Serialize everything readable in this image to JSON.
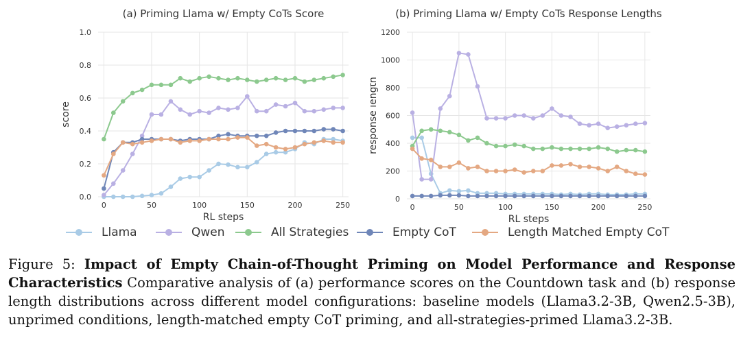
{
  "colors": {
    "Llama": "#a9cbe6",
    "Qwen": "#b9b0e3",
    "All Strategies": "#8cc98e",
    "Empty CoT": "#6f86b8",
    "Length Matched Empty CoT": "#e4a882",
    "grid": "#e6e6e6"
  },
  "legend": [
    "Llama",
    "Qwen",
    "All Strategies",
    "Empty CoT",
    "Length Matched Empty CoT"
  ],
  "chart_data": [
    {
      "type": "line",
      "title": "(a) Priming Llama w/ Empty CoTs Score",
      "xlabel": "RL steps",
      "ylabel": "score",
      "xlim": [
        -6,
        256
      ],
      "ylim": [
        0,
        1.0
      ],
      "xticks": [
        0,
        50,
        100,
        150,
        200,
        250
      ],
      "yticks": [
        0.0,
        0.2,
        0.4,
        0.6,
        0.8,
        1.0
      ],
      "ytick_labels": [
        "0.0",
        "0.2",
        "0.4",
        "0.6",
        "0.8",
        "1.0"
      ],
      "x": [
        0,
        10,
        20,
        30,
        40,
        50,
        60,
        70,
        80,
        90,
        100,
        110,
        120,
        130,
        140,
        150,
        160,
        170,
        180,
        190,
        200,
        210,
        220,
        230,
        240,
        250
      ],
      "series": [
        {
          "name": "Llama",
          "values": [
            0.0,
            0.0,
            0.0,
            0.0,
            0.005,
            0.01,
            0.02,
            0.06,
            0.11,
            0.12,
            0.12,
            0.16,
            0.2,
            0.195,
            0.18,
            0.18,
            0.21,
            0.26,
            0.27,
            0.27,
            0.29,
            0.33,
            0.32,
            0.35,
            0.35,
            0.34
          ]
        },
        {
          "name": "Qwen",
          "values": [
            0.01,
            0.08,
            0.16,
            0.26,
            0.37,
            0.5,
            0.5,
            0.58,
            0.53,
            0.5,
            0.52,
            0.51,
            0.54,
            0.53,
            0.54,
            0.61,
            0.52,
            0.52,
            0.56,
            0.55,
            0.57,
            0.52,
            0.52,
            0.53,
            0.54,
            0.54
          ]
        },
        {
          "name": "All Strategies",
          "values": [
            0.35,
            0.51,
            0.58,
            0.63,
            0.65,
            0.68,
            0.68,
            0.68,
            0.72,
            0.7,
            0.72,
            0.73,
            0.72,
            0.71,
            0.72,
            0.71,
            0.7,
            0.71,
            0.72,
            0.71,
            0.72,
            0.7,
            0.71,
            0.72,
            0.73,
            0.74
          ]
        },
        {
          "name": "Empty CoT",
          "values": [
            0.05,
            0.27,
            0.33,
            0.33,
            0.35,
            0.35,
            0.35,
            0.35,
            0.34,
            0.35,
            0.35,
            0.35,
            0.37,
            0.38,
            0.37,
            0.37,
            0.37,
            0.37,
            0.39,
            0.4,
            0.4,
            0.4,
            0.4,
            0.41,
            0.41,
            0.4
          ]
        },
        {
          "name": "Length Matched Empty CoT",
          "values": [
            0.13,
            0.26,
            0.33,
            0.32,
            0.33,
            0.34,
            0.35,
            0.35,
            0.33,
            0.34,
            0.34,
            0.35,
            0.35,
            0.35,
            0.36,
            0.36,
            0.31,
            0.32,
            0.3,
            0.29,
            0.3,
            0.32,
            0.33,
            0.34,
            0.33,
            0.33
          ]
        }
      ]
    },
    {
      "type": "line",
      "title": "(b) Priming Llama w/ Empty CoTs Response Lengths",
      "xlabel": "RL steps",
      "ylabel": "response length",
      "xlim": [
        -6,
        256
      ],
      "ylim": [
        0,
        1200
      ],
      "xticks": [
        0,
        50,
        100,
        150,
        200,
        250
      ],
      "yticks": [
        0,
        200,
        400,
        600,
        800,
        1000,
        1200
      ],
      "ytick_labels": [
        "0",
        "200",
        "400",
        "600",
        "800",
        "1000",
        "1200"
      ],
      "x": [
        0,
        10,
        20,
        30,
        40,
        50,
        60,
        70,
        80,
        90,
        100,
        110,
        120,
        130,
        140,
        150,
        160,
        170,
        180,
        190,
        200,
        210,
        220,
        230,
        240,
        250
      ],
      "series": [
        {
          "name": "Llama",
          "values": [
            440,
            440,
            180,
            40,
            60,
            55,
            60,
            40,
            40,
            40,
            35,
            35,
            35,
            35,
            35,
            35,
            30,
            35,
            30,
            35,
            35,
            30,
            30,
            30,
            35,
            35
          ]
        },
        {
          "name": "Qwen",
          "values": [
            620,
            140,
            140,
            650,
            740,
            1050,
            1040,
            810,
            580,
            580,
            580,
            600,
            600,
            580,
            600,
            650,
            600,
            590,
            540,
            530,
            540,
            510,
            520,
            530,
            540,
            545
          ]
        },
        {
          "name": "All Strategies",
          "values": [
            380,
            490,
            500,
            490,
            480,
            460,
            420,
            440,
            400,
            380,
            380,
            390,
            380,
            360,
            360,
            370,
            360,
            360,
            360,
            360,
            370,
            360,
            340,
            350,
            350,
            340
          ]
        },
        {
          "name": "Empty CoT",
          "values": [
            20,
            20,
            20,
            25,
            25,
            25,
            20,
            20,
            20,
            20,
            20,
            20,
            20,
            20,
            20,
            20,
            20,
            20,
            20,
            20,
            20,
            20,
            20,
            20,
            20,
            20
          ]
        },
        {
          "name": "Length Matched Empty CoT",
          "values": [
            360,
            290,
            280,
            230,
            230,
            260,
            220,
            230,
            200,
            200,
            200,
            210,
            190,
            200,
            200,
            240,
            240,
            250,
            230,
            230,
            220,
            200,
            230,
            200,
            180,
            175
          ]
        }
      ]
    }
  ],
  "caption": {
    "label": "Figure 5:",
    "bold_title": "Impact of Empty Chain-of-Thought Priming on Model Performance and Response Characteristics",
    "text": "Comparative analysis of (a) performance scores on the Countdown task and (b) response length distributions across different model configurations: baseline models (Llama3.2-3B, Qwen2.5-3B), unprimed conditions, length-matched empty CoT priming, and all-strategies-primed Llama3.2-3B."
  }
}
